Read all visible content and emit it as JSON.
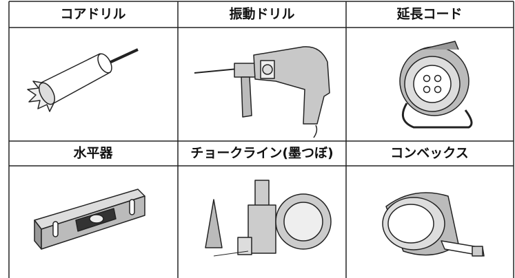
{
  "cells": [
    {
      "label": "コアドリル"
    },
    {
      "label": "振動ドリル"
    },
    {
      "label": "延長コード"
    },
    {
      "label": "水平器"
    },
    {
      "label": "チョークライン(墨つぼ)"
    },
    {
      "label": "コンベックス"
    }
  ]
}
